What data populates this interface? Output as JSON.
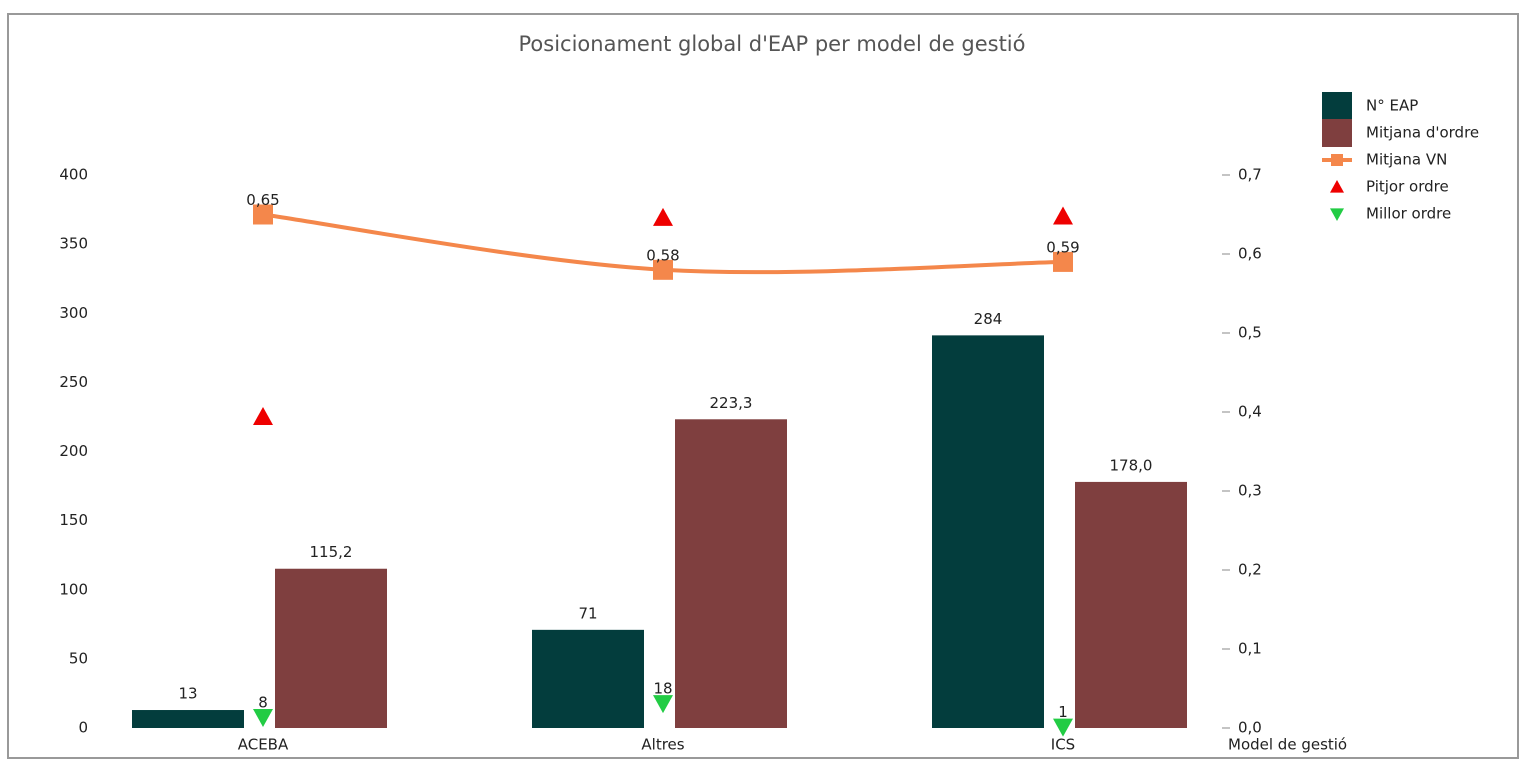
{
  "chart_data": {
    "type": "bar",
    "title": "Posicionament global d'EAP per model de gestió",
    "x_label": "Model de gestió",
    "categories": [
      "ACEBA",
      "Altres",
      "ICS"
    ],
    "series": [
      {
        "name": "N° EAP",
        "type": "bar",
        "color": "#033d3d",
        "values": [
          13,
          71,
          284
        ]
      },
      {
        "name": "Mitjana d'ordre",
        "type": "bar",
        "color": "#7f3f3f",
        "values": [
          115.2,
          223.3,
          178.0
        ],
        "value_labels": [
          "115,2",
          "223,3",
          "178,0"
        ]
      },
      {
        "name": "Mitjana VN",
        "type": "line",
        "axis": "y2",
        "marker": "square",
        "color": "#f4874b",
        "values": [
          0.65,
          0.58,
          0.59
        ],
        "value_labels": [
          "0,65",
          "0,58",
          "0,59"
        ]
      },
      {
        "name": "Pitjor ordre",
        "type": "scatter",
        "marker": "triangle-up",
        "color": "#ee0000",
        "values": [
          225,
          369,
          370
        ]
      },
      {
        "name": "Millor ordre",
        "type": "scatter",
        "marker": "triangle-down",
        "color": "#22cc44",
        "values": [
          8,
          18,
          1
        ],
        "show_labels": true
      }
    ],
    "ylim": [
      0,
      400
    ],
    "yticks": [
      0,
      50,
      100,
      150,
      200,
      250,
      300,
      350,
      400
    ],
    "y2lim": [
      0,
      0.7
    ],
    "y2ticks": [
      {
        "value": 0,
        "label": "0,0"
      },
      {
        "value": 0.1,
        "label": "0,1"
      },
      {
        "value": 0.2,
        "label": "0,2"
      },
      {
        "value": 0.3,
        "label": "0,3"
      },
      {
        "value": 0.4,
        "label": "0,4"
      },
      {
        "value": 0.5,
        "label": "0,5"
      },
      {
        "value": 0.6,
        "label": "0,6"
      },
      {
        "value": 0.7,
        "label": "0,7"
      }
    ],
    "legend": "top-right",
    "grid": false
  }
}
